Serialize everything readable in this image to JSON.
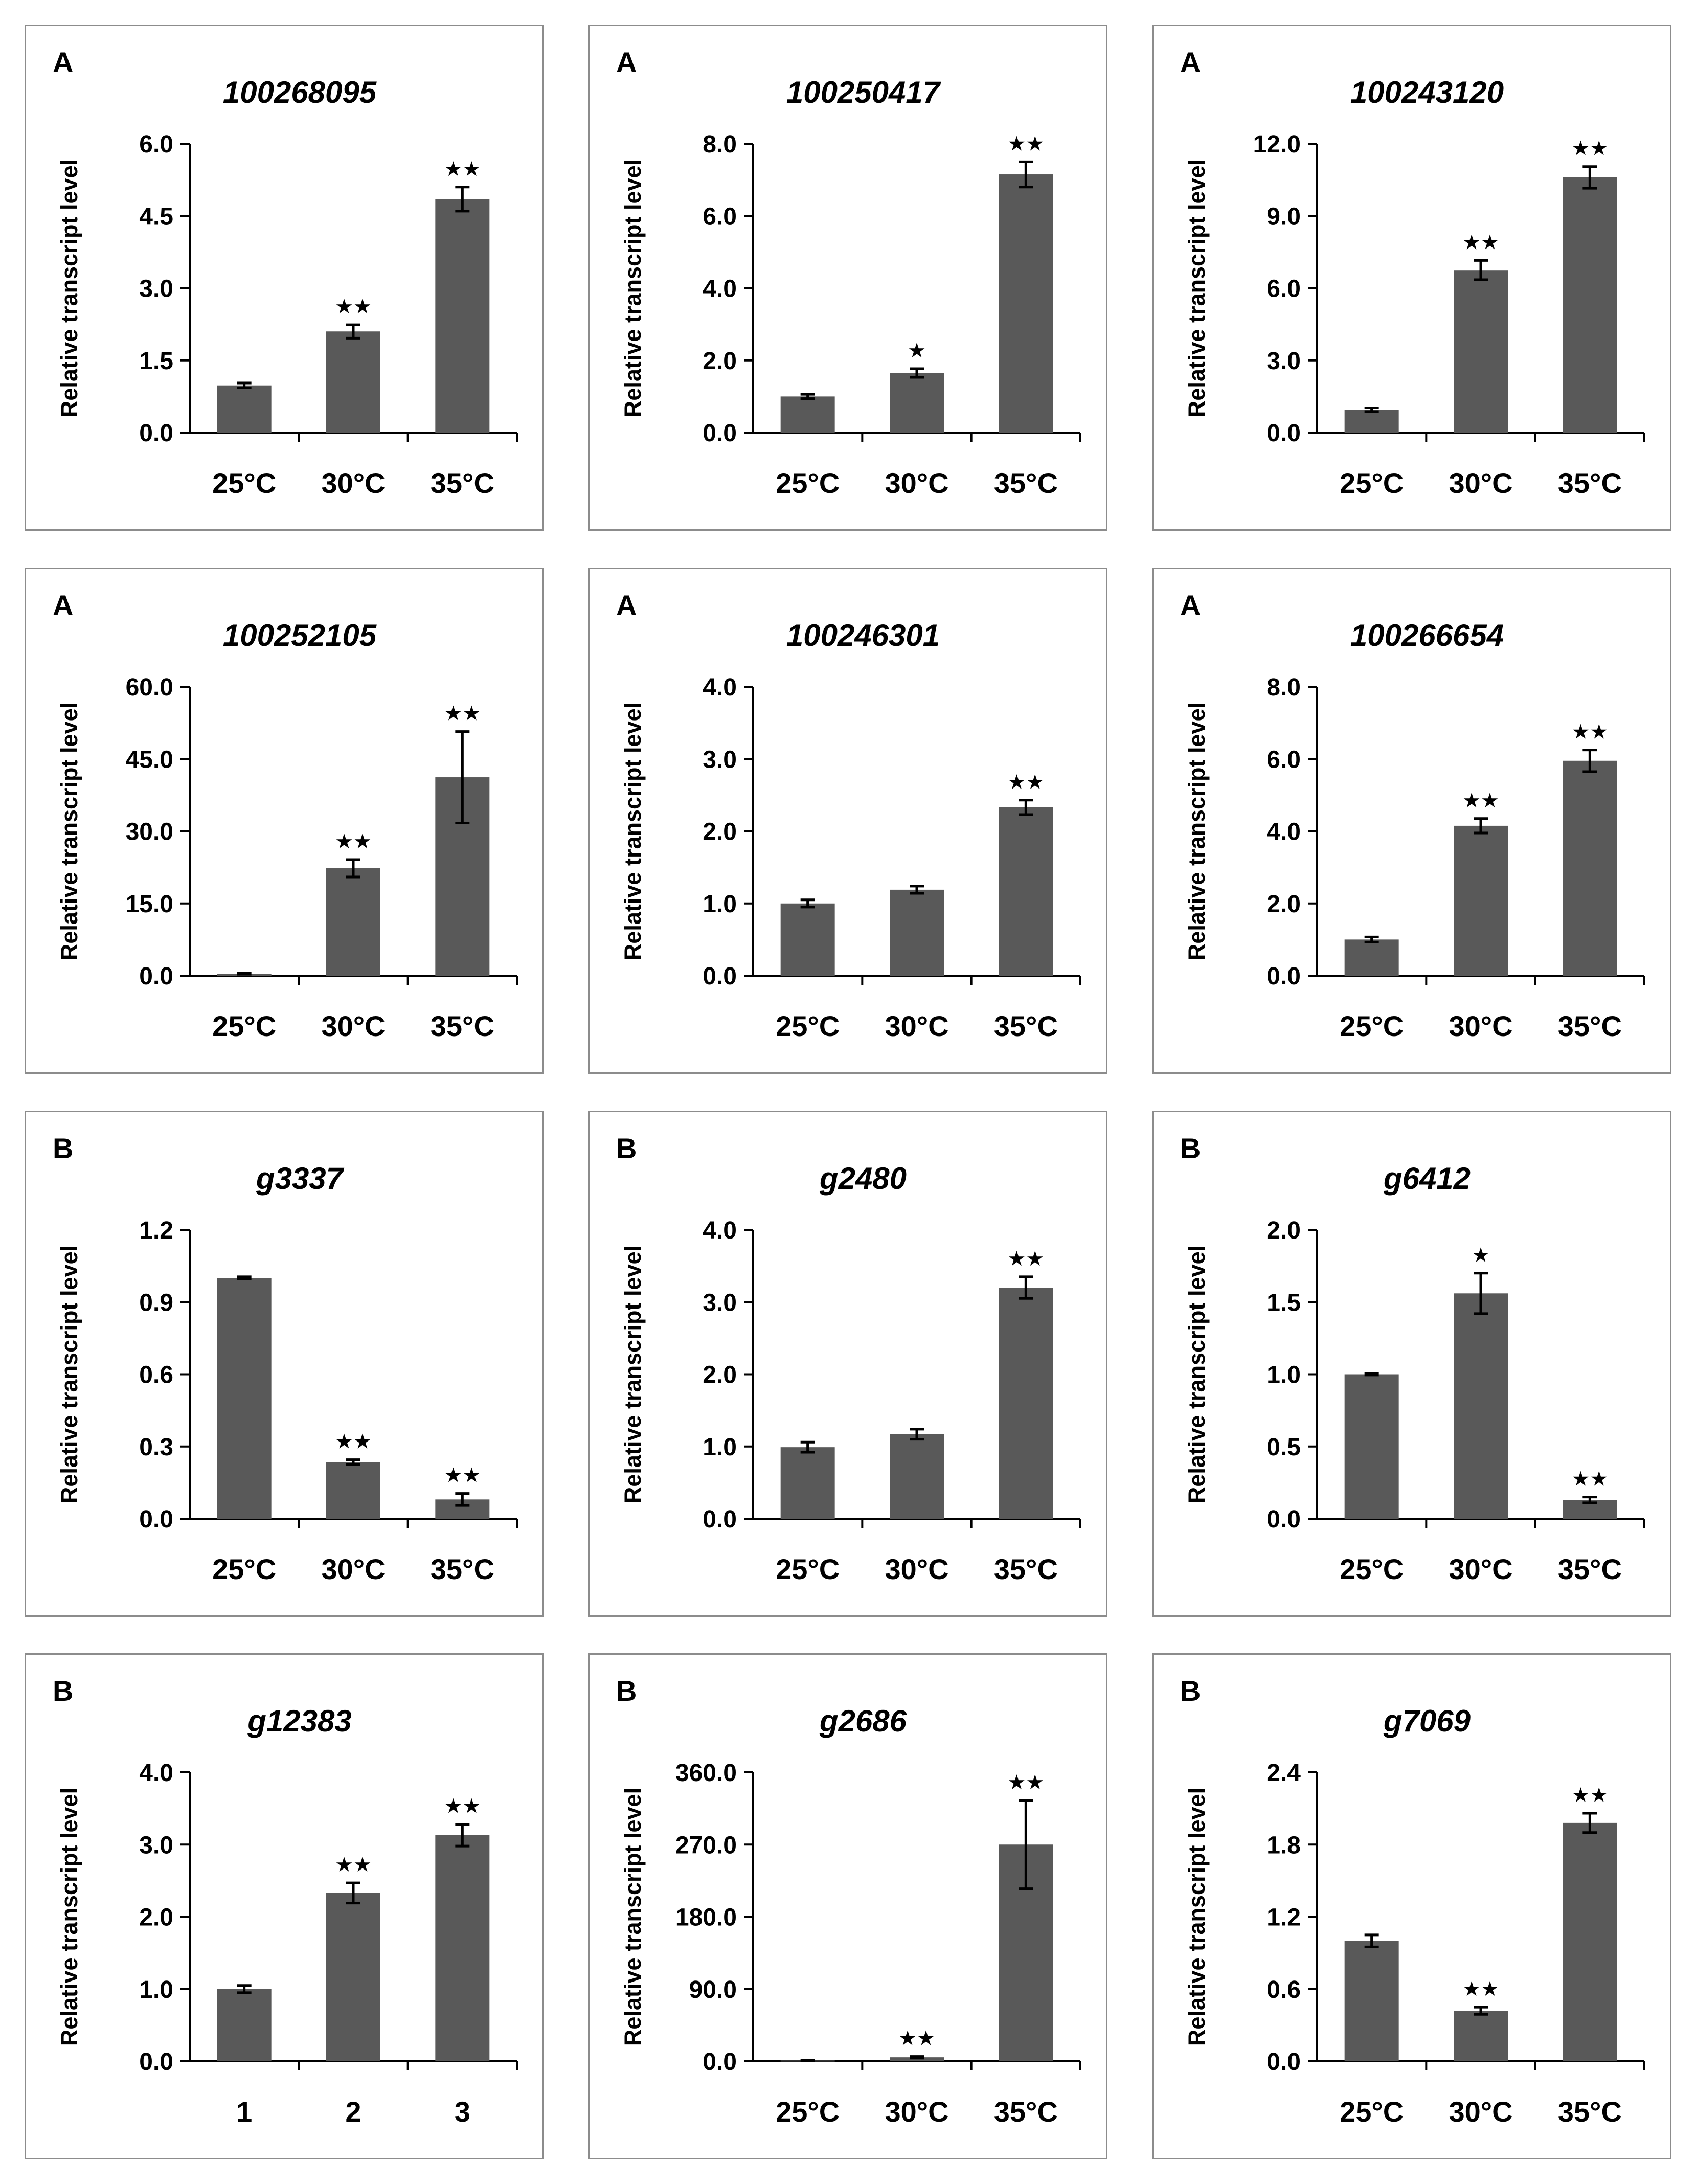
{
  "chart_data": [
    {
      "type": "bar",
      "panel_label": "A",
      "title": "100268095",
      "ylabel": "Relative transcript  level",
      "categories": [
        "25°C",
        "30°C",
        "35°C"
      ],
      "values": [
        0.98,
        2.1,
        4.85
      ],
      "errors": [
        0.05,
        0.14,
        0.25
      ],
      "significance": [
        "",
        "★★",
        "★★"
      ],
      "ylim": [
        0,
        6.0
      ],
      "yticks": [
        "0.0",
        "1.5",
        "3.0",
        "4.5",
        "6.0"
      ],
      "bar_color": "#595959",
      "grid": false,
      "legend": "none"
    },
    {
      "type": "bar",
      "panel_label": "A",
      "title": "100250417",
      "ylabel": "Relative transcript  level",
      "categories": [
        "25°C",
        "30°C",
        "35°C"
      ],
      "values": [
        1.0,
        1.65,
        7.15
      ],
      "errors": [
        0.06,
        0.12,
        0.35
      ],
      "significance": [
        "",
        "★",
        "★★"
      ],
      "ylim": [
        0,
        8.0
      ],
      "yticks": [
        "0.0",
        "2.0",
        "4.0",
        "6.0",
        "8.0"
      ],
      "bar_color": "#595959",
      "grid": false,
      "legend": "none"
    },
    {
      "type": "bar",
      "panel_label": "A",
      "title": "100243120",
      "ylabel": "Relative transcript  level",
      "categories": [
        "25°C",
        "30°C",
        "35°C"
      ],
      "values": [
        0.95,
        6.75,
        10.6
      ],
      "errors": [
        0.08,
        0.4,
        0.45
      ],
      "significance": [
        "",
        "★★",
        "★★"
      ],
      "ylim": [
        0,
        12.0
      ],
      "yticks": [
        "0.0",
        "3.0",
        "6.0",
        "9.0",
        "12.0"
      ],
      "bar_color": "#595959",
      "grid": false,
      "legend": "none"
    },
    {
      "type": "bar",
      "panel_label": "A",
      "title": "100252105",
      "ylabel": "Relative transcript  level",
      "categories": [
        "25°C",
        "30°C",
        "35°C"
      ],
      "values": [
        0.4,
        22.3,
        41.2
      ],
      "errors": [
        0.1,
        1.8,
        9.5
      ],
      "significance": [
        "",
        "★★",
        "★★"
      ],
      "ylim": [
        0,
        60.0
      ],
      "yticks": [
        "0.0",
        "15.0",
        "30.0",
        "45.0",
        "60.0"
      ],
      "bar_color": "#595959",
      "grid": false,
      "legend": "none"
    },
    {
      "type": "bar",
      "panel_label": "A",
      "title": "100246301",
      "ylabel": "Relative transcript  level",
      "categories": [
        "25°C",
        "30°C",
        "35°C"
      ],
      "values": [
        1.0,
        1.19,
        2.33
      ],
      "errors": [
        0.05,
        0.05,
        0.1
      ],
      "significance": [
        "",
        "",
        "★★"
      ],
      "ylim": [
        0,
        4.0
      ],
      "yticks": [
        "0.0",
        "1.0",
        "2.0",
        "3.0",
        "4.0"
      ],
      "bar_color": "#595959",
      "grid": false,
      "legend": "none"
    },
    {
      "type": "bar",
      "panel_label": "A",
      "title": "100266654",
      "ylabel": "Relative transcript  level",
      "categories": [
        "25°C",
        "30°C",
        "35°C"
      ],
      "values": [
        1.0,
        4.15,
        5.95
      ],
      "errors": [
        0.07,
        0.2,
        0.3
      ],
      "significance": [
        "",
        "★★",
        "★★"
      ],
      "ylim": [
        0,
        8.0
      ],
      "yticks": [
        "0.0",
        "2.0",
        "4.0",
        "6.0",
        "8.0"
      ],
      "bar_color": "#595959",
      "grid": false,
      "legend": "none"
    },
    {
      "type": "bar",
      "panel_label": "B",
      "title": "g3337",
      "ylabel": "Relative transcript  level",
      "categories": [
        "25°C",
        "30°C",
        "35°C"
      ],
      "values": [
        1.0,
        0.235,
        0.08
      ],
      "errors": [
        0.005,
        0.01,
        0.025
      ],
      "significance": [
        "",
        "★★",
        "★★"
      ],
      "ylim": [
        0,
        1.2
      ],
      "yticks": [
        "0.0",
        "0.3",
        "0.6",
        "0.9",
        "1.2"
      ],
      "bar_color": "#595959",
      "grid": false,
      "legend": "none"
    },
    {
      "type": "bar",
      "panel_label": "B",
      "title": "g2480",
      "ylabel": "Relative transcript  level",
      "categories": [
        "25°C",
        "30°C",
        "35°C"
      ],
      "values": [
        0.99,
        1.17,
        3.2
      ],
      "errors": [
        0.07,
        0.07,
        0.15
      ],
      "significance": [
        "",
        "",
        "★★"
      ],
      "ylim": [
        0,
        4.0
      ],
      "yticks": [
        "0.0",
        "1.0",
        "2.0",
        "3.0",
        "4.0"
      ],
      "bar_color": "#595959",
      "grid": false,
      "legend": "none"
    },
    {
      "type": "bar",
      "panel_label": "B",
      "title": "g6412",
      "ylabel": "Relative transcript  level",
      "categories": [
        "25°C",
        "30°C",
        "35°C"
      ],
      "values": [
        1.0,
        1.56,
        0.13
      ],
      "errors": [
        0.005,
        0.14,
        0.02
      ],
      "significance": [
        "",
        "★",
        "★★"
      ],
      "ylim": [
        0,
        2.0
      ],
      "yticks": [
        "0.0",
        "0.5",
        "1.0",
        "1.5",
        "2.0"
      ],
      "bar_color": "#595959",
      "grid": false,
      "legend": "none"
    },
    {
      "type": "bar",
      "panel_label": "B",
      "title": "g12383",
      "ylabel": "Relative transcript  level",
      "categories": [
        "1",
        "2",
        "3"
      ],
      "values": [
        1.0,
        2.33,
        3.13
      ],
      "errors": [
        0.05,
        0.14,
        0.15
      ],
      "significance": [
        "",
        "★★",
        "★★"
      ],
      "ylim": [
        0,
        4.0
      ],
      "yticks": [
        "0.0",
        "1.0",
        "2.0",
        "3.0",
        "4.0"
      ],
      "bar_color": "#595959",
      "grid": false,
      "legend": "none"
    },
    {
      "type": "bar",
      "panel_label": "B",
      "title": "g2686",
      "ylabel": "Relative transcript  level",
      "categories": [
        "25°C",
        "30°C",
        "35°C"
      ],
      "values": [
        1.0,
        5.0,
        270.0
      ],
      "errors": [
        0.2,
        1.0,
        55.0
      ],
      "significance": [
        "",
        "★★",
        "★★"
      ],
      "ylim": [
        0,
        360.0
      ],
      "yticks": [
        "0.0",
        "90.0",
        "180.0",
        "270.0",
        "360.0"
      ],
      "bar_color": "#595959",
      "grid": false,
      "legend": "none"
    },
    {
      "type": "bar",
      "panel_label": "B",
      "title": "g7069",
      "ylabel": "Relative transcript  level",
      "categories": [
        "25°C",
        "30°C",
        "35°C"
      ],
      "values": [
        1.0,
        0.42,
        1.98
      ],
      "errors": [
        0.05,
        0.03,
        0.08
      ],
      "significance": [
        "",
        "★★",
        "★★"
      ],
      "ylim": [
        0,
        2.4
      ],
      "yticks": [
        "0.0",
        "0.6",
        "1.2",
        "1.8",
        "2.4"
      ],
      "bar_color": "#595959",
      "grid": false,
      "legend": "none"
    }
  ]
}
